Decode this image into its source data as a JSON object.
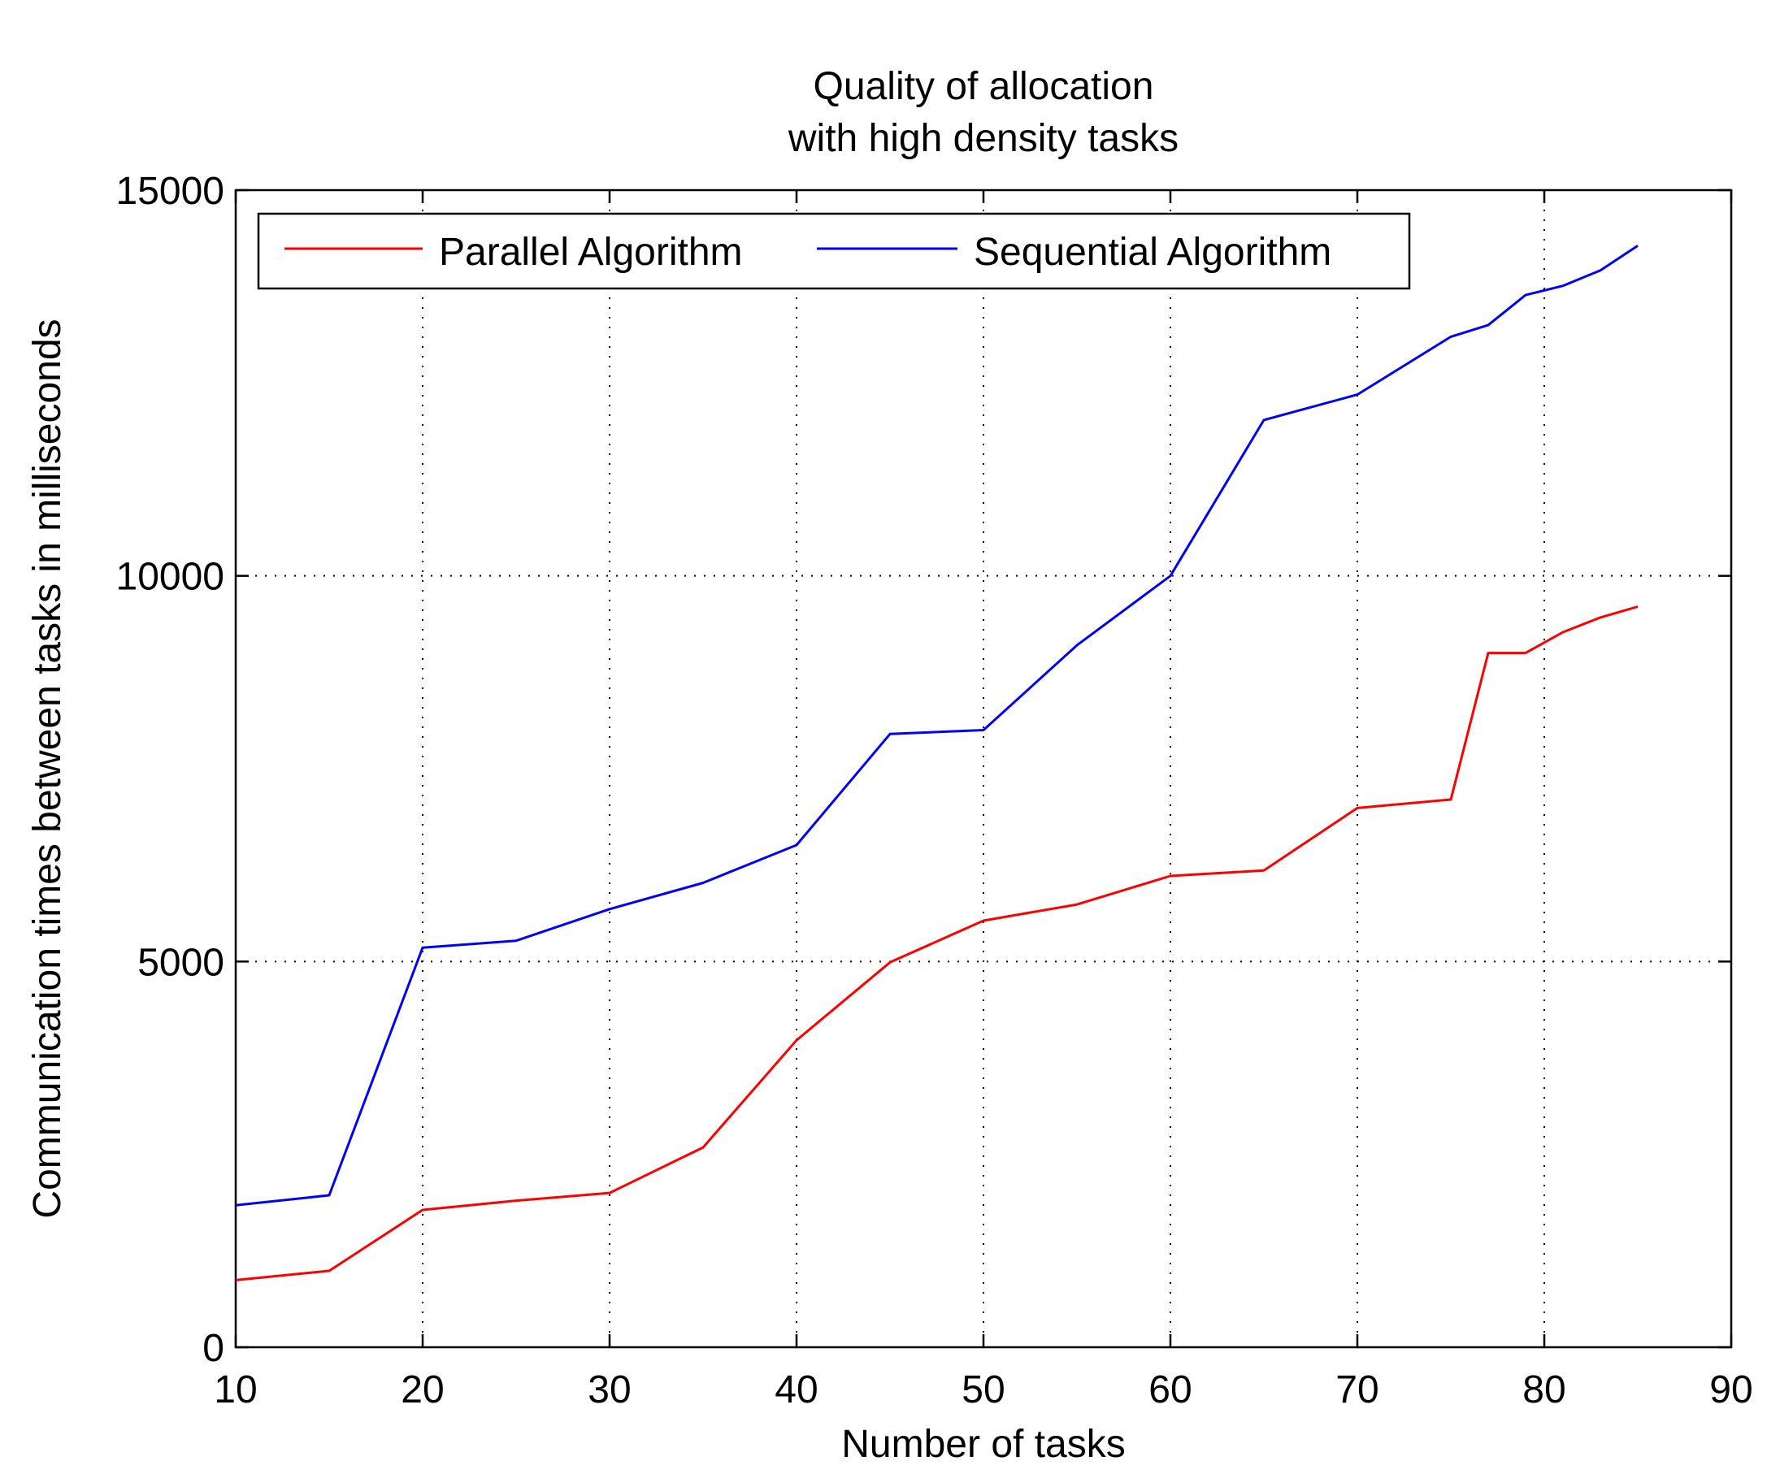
{
  "chart_data": {
    "type": "line",
    "title": [
      "Quality of allocation",
      "with high density tasks"
    ],
    "xlabel": "Number of tasks",
    "ylabel": "Communication times between tasks in milliseconds",
    "xlim": [
      10,
      90
    ],
    "ylim": [
      0,
      15000
    ],
    "xticks": [
      10,
      20,
      30,
      40,
      50,
      60,
      70,
      80,
      90
    ],
    "yticks": [
      0,
      5000,
      10000,
      15000
    ],
    "grid": true,
    "legend": "top-left",
    "series": [
      {
        "name": "Parallel Algorithm",
        "color": "#ff0000",
        "x": [
          10,
          15,
          20,
          25,
          30,
          35,
          40,
          45,
          50,
          55,
          60,
          65,
          70,
          75,
          77,
          79,
          81,
          83,
          85
        ],
        "y": [
          870,
          990,
          1780,
          1900,
          2000,
          2590,
          3980,
          4990,
          5530,
          5740,
          6110,
          6180,
          6990,
          7100,
          9000,
          9000,
          9270,
          9460,
          9600
        ]
      },
      {
        "name": "Sequential Algorithm",
        "color": "#0000ff",
        "x": [
          10,
          15,
          20,
          25,
          30,
          35,
          40,
          45,
          50,
          55,
          60,
          65,
          70,
          75,
          77,
          79,
          81,
          83,
          85
        ],
        "y": [
          1840,
          1970,
          5180,
          5270,
          5680,
          6020,
          6510,
          7950,
          8000,
          9100,
          10000,
          12020,
          12350,
          13100,
          13250,
          13640,
          13760,
          13960,
          14280
        ]
      }
    ]
  }
}
